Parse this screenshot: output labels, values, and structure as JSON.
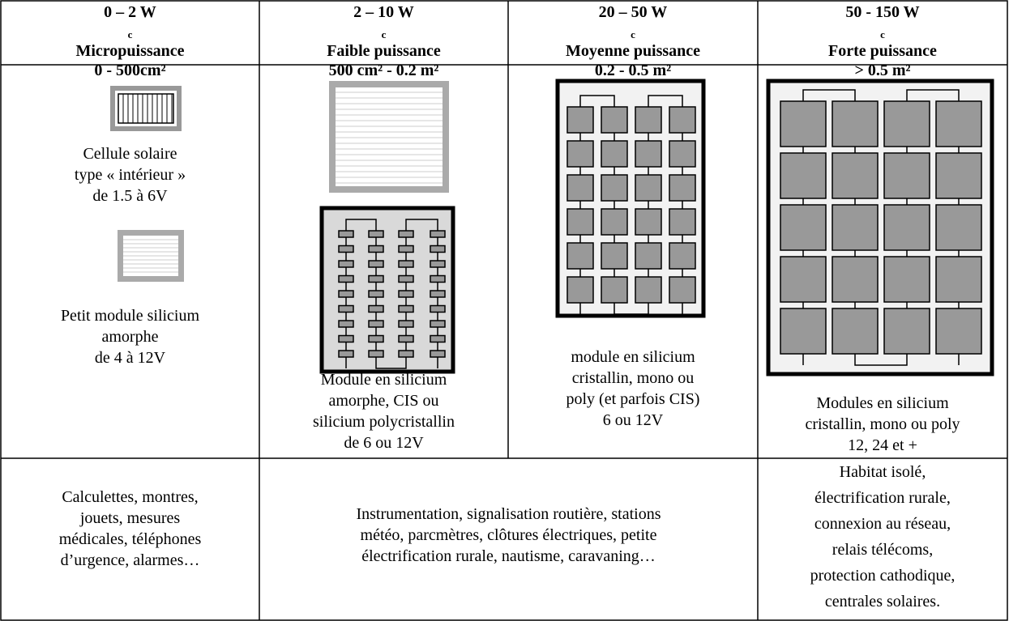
{
  "header": [
    {
      "power": "0 – 2 W",
      "subscript": "c",
      "name": "Micropuissance",
      "area": "0 - 500cm²"
    },
    {
      "power": "2 – 10 W",
      "subscript": "c",
      "name": "Faible puissance",
      "area": "500 cm² - 0.2 m²"
    },
    {
      "power": "20 – 50 W",
      "subscript": "c",
      "name": "Moyenne puissance",
      "area": "0.2 - 0.5 m²"
    },
    {
      "power": "50 - 150 W",
      "subscript": "c",
      "name": "Forte puissance",
      "area": "> 0.5 m²"
    }
  ],
  "captions": [
    {
      "lines": [
        "Cellule solaire",
        "type « intérieur »",
        "de 1.5 à 6V"
      ]
    },
    {
      "lines": [
        "Petit module silicium",
        "amorphe",
        "de 4 à 12V"
      ]
    },
    {
      "lines": [
        "Module en silicium",
        "amorphe, CIS ou",
        "silicium polycristallin",
        "de 6 ou 12V"
      ]
    },
    {
      "lines": [
        "module en silicium",
        "cristallin, mono ou",
        "poly (et parfois CIS)",
        "6 ou 12V"
      ]
    },
    {
      "lines": [
        "Modules en silicium",
        "cristallin, mono ou poly",
        "12, 24 et +"
      ]
    }
  ],
  "applications": [
    {
      "lines": [
        "Calculettes, montres,",
        "jouets, mesures",
        "médicales, téléphones",
        "d’urgence, alarmes…"
      ]
    },
    {
      "lines": [
        "Instrumentation, signalisation routière, stations",
        "météo, parcmètres, clôtures électriques, petite",
        "électrification rurale, nautisme, caravaning…"
      ]
    },
    {
      "lines": [
        "Habitat isolé,",
        "électrification rurale,",
        "connexion au réseau,",
        "relais télécoms,",
        "protection cathodique,",
        "centrales solaires."
      ]
    }
  ]
}
